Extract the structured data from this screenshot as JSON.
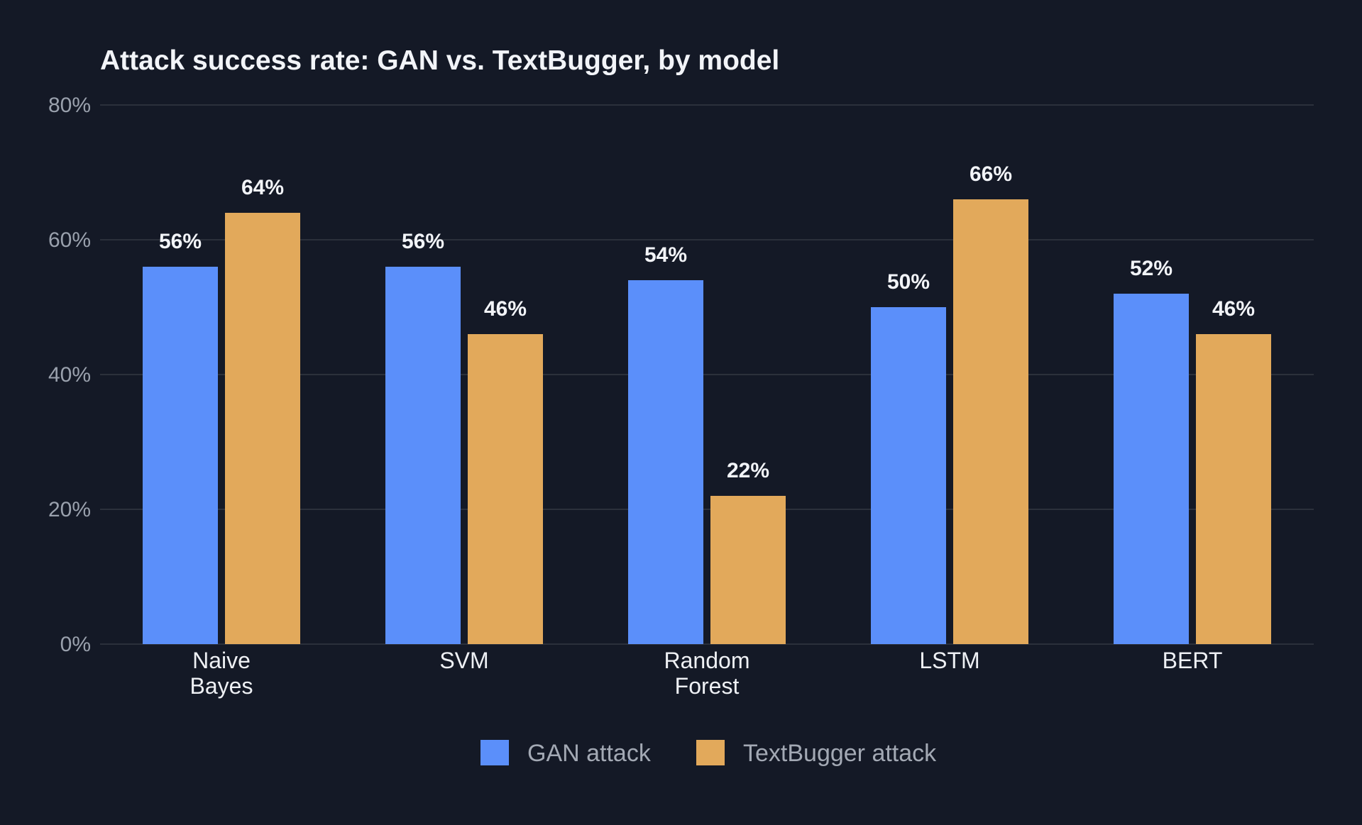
{
  "chart_data": {
    "type": "bar",
    "title": "Attack success rate: GAN vs. TextBugger, by model",
    "categories": [
      [
        "Naive",
        "Bayes"
      ],
      [
        "SVM"
      ],
      [
        "Random",
        "Forest"
      ],
      [
        "LSTM"
      ],
      [
        "BERT"
      ]
    ],
    "series": [
      {
        "name": "GAN attack",
        "color": "#5b8ffa",
        "values": [
          56,
          56,
          54,
          50,
          52
        ],
        "labels": [
          "56%",
          "56%",
          "54%",
          "50%",
          "52%"
        ]
      },
      {
        "name": "TextBugger attack",
        "color": "#e2a95b",
        "values": [
          64,
          46,
          22,
          66,
          46
        ],
        "labels": [
          "64%",
          "46%",
          "22%",
          "66%",
          "46%"
        ]
      }
    ],
    "ylim": [
      0,
      80
    ],
    "yticks": [
      0,
      20,
      40,
      60,
      80
    ],
    "ytick_labels": [
      "0%",
      "20%",
      "40%",
      "60%",
      "80%"
    ],
    "grid": true,
    "legend_position": "bottom-center"
  },
  "colors": {
    "background": "#141926",
    "grid": "#2b303b"
  }
}
